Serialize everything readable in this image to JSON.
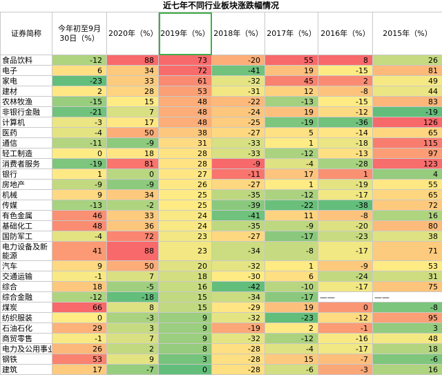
{
  "title": "近七年不同行业板块涨跌幅情况",
  "headers": [
    "证券简称",
    "今年初至9月30日（%）",
    "2020年（%）",
    "2019年（%）",
    "2018年（%）",
    "2017年（%）",
    "2016年（%）",
    "2015年（%）"
  ],
  "highlight_column": 3,
  "dash_value": "——",
  "rows": [
    {
      "name": "食品饮料",
      "values": [
        -12,
        88,
        73,
        -20,
        55,
        8,
        26
      ]
    },
    {
      "name": "电子",
      "values": [
        6,
        34,
        72,
        -41,
        19,
        -15,
        81
      ]
    },
    {
      "name": "家电",
      "values": [
        -23,
        33,
        61,
        -32,
        45,
        2,
        49
      ]
    },
    {
      "name": "建材",
      "values": [
        2,
        28,
        53,
        -31,
        12,
        -8,
        44
      ]
    },
    {
      "name": "农林牧渔",
      "values": [
        -15,
        15,
        48,
        -22,
        -13,
        -15,
        83
      ]
    },
    {
      "name": "非银行金融",
      "values": [
        -21,
        7,
        48,
        -24,
        19,
        -12,
        -19
      ]
    },
    {
      "name": "计算机",
      "values": [
        -3,
        17,
        48,
        -25,
        -19,
        -36,
        126
      ]
    },
    {
      "name": "医药",
      "values": [
        -4,
        50,
        38,
        -27,
        5,
        -14,
        65
      ]
    },
    {
      "name": "通信",
      "values": [
        -11,
        -9,
        31,
        -33,
        1,
        -18,
        115
      ]
    },
    {
      "name": "轻工制造",
      "values": [
        0,
        18,
        28,
        -33,
        -12,
        -13,
        97
      ]
    },
    {
      "name": "消费者服务",
      "values": [
        -19,
        81,
        28,
        -9,
        -4,
        -28,
        123
      ]
    },
    {
      "name": "银行",
      "values": [
        1,
        0,
        27,
        -11,
        17,
        1,
        4
      ]
    },
    {
      "name": "房地产",
      "values": [
        -9,
        -9,
        26,
        -27,
        1,
        -19,
        55
      ]
    },
    {
      "name": "机械",
      "values": [
        9,
        34,
        25,
        -35,
        -12,
        -17,
        65
      ]
    },
    {
      "name": "传媒",
      "values": [
        -13,
        -2,
        25,
        -39,
        -22,
        -38,
        72
      ]
    },
    {
      "name": "有色金属",
      "values": [
        46,
        33,
        24,
        -41,
        11,
        -8,
        16
      ]
    },
    {
      "name": "基础化工",
      "values": [
        48,
        36,
        24,
        -35,
        -9,
        -20,
        80
      ]
    },
    {
      "name": "国防军工",
      "values": [
        -4,
        72,
        23,
        -27,
        -17,
        -23,
        38
      ]
    },
    {
      "name": "电力设备及新能源",
      "values": [
        41,
        88,
        23,
        -34,
        -8,
        -17,
        71
      ]
    },
    {
      "name": "汽车",
      "values": [
        9,
        50,
        20,
        -32,
        1,
        -9,
        53
      ]
    },
    {
      "name": "交通运输",
      "values": [
        -1,
        7,
        18,
        -30,
        6,
        -24,
        31
      ]
    },
    {
      "name": "综合",
      "values": [
        18,
        -5,
        16,
        -42,
        -10,
        -17,
        75
      ]
    },
    {
      "name": "综合金融",
      "values": [
        -12,
        -18,
        15,
        -34,
        -17,
        null,
        null
      ]
    },
    {
      "name": "煤炭",
      "values": [
        66,
        8,
        15,
        -29,
        19,
        0,
        -8
      ]
    },
    {
      "name": "纺织服装",
      "values": [
        0,
        -3,
        9,
        -32,
        -23,
        -12,
        95
      ]
    },
    {
      "name": "石油石化",
      "values": [
        29,
        3,
        9,
        -19,
        2,
        -1,
        3
      ]
    },
    {
      "name": "商贸零售",
      "values": [
        -1,
        7,
        9,
        -32,
        -12,
        -16,
        48
      ]
    },
    {
      "name": "电力及公用事业",
      "values": [
        26,
        2,
        8,
        -28,
        -4,
        -17,
        18
      ]
    },
    {
      "name": "钢铁",
      "values": [
        53,
        9,
        3,
        -28,
        15,
        -7,
        -6
      ]
    },
    {
      "name": "建筑",
      "values": [
        17,
        -7,
        0,
        -28,
        -6,
        -3,
        16
      ]
    }
  ]
}
